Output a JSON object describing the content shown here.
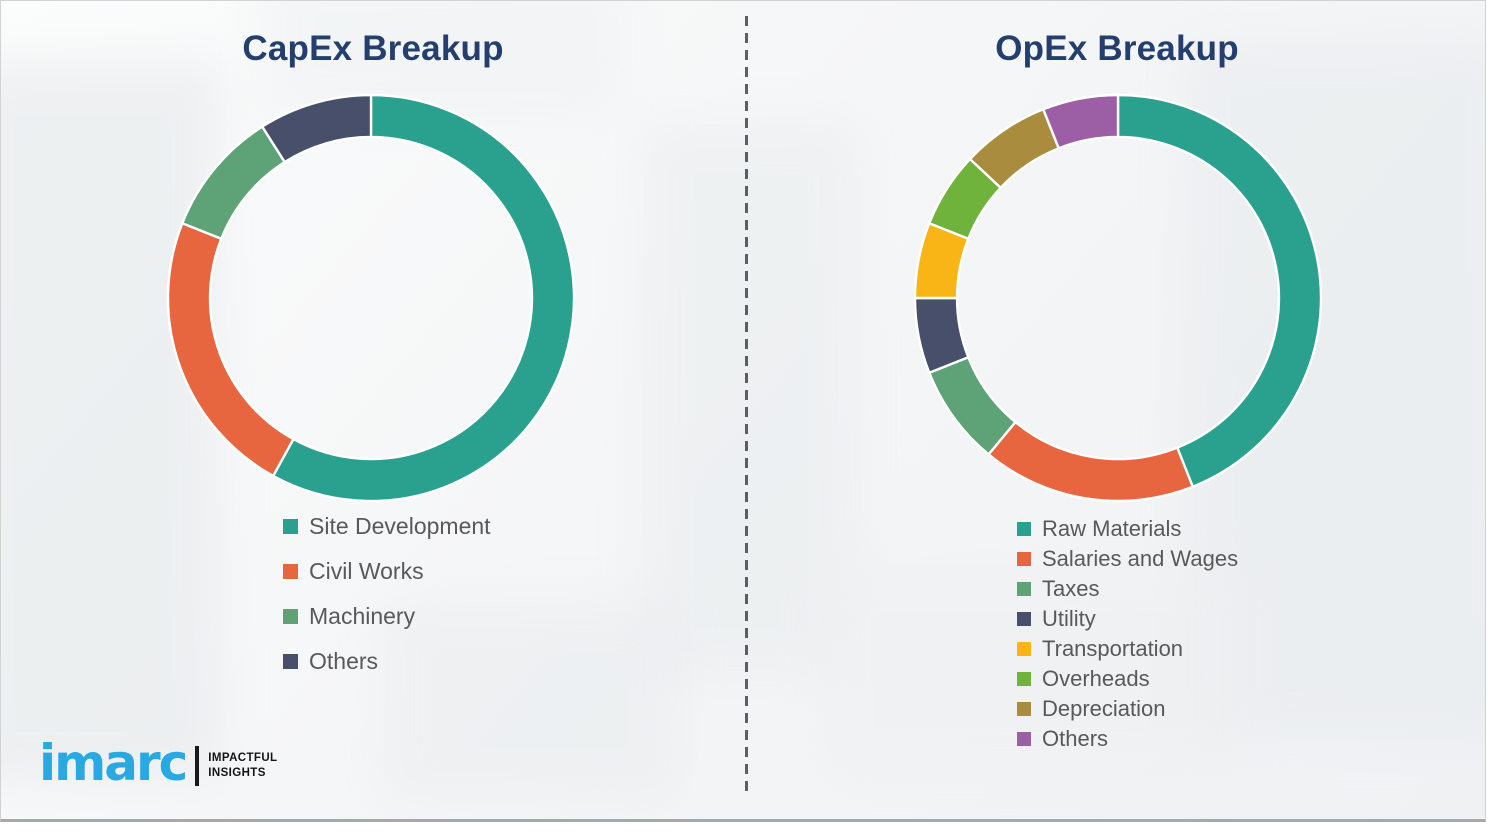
{
  "page": {
    "background_color": "#f5f6f7",
    "border_color": "#d2d2d2",
    "bottom_rule_color": "#a8a8a8",
    "divider_color": "#5a5f66",
    "title_color": "#243f6d",
    "legend_text_color": "#595959"
  },
  "chart_data": [
    {
      "type": "pie",
      "subtype": "donut",
      "title": "CapEx Breakup",
      "labels": [
        "Site Development",
        "Civil Works",
        "Machinery",
        "Others"
      ],
      "values": [
        58,
        23,
        10,
        9
      ],
      "colors": [
        "#2aa08e",
        "#e7663f",
        "#5ea377",
        "#474f6b"
      ],
      "start_angle_deg": 0,
      "direction": "clockwise",
      "legend_position": "below-left",
      "segment_separator_color": "#ffffff"
    },
    {
      "type": "pie",
      "subtype": "donut",
      "title": "OpEx Breakup",
      "labels": [
        "Raw Materials",
        "Salaries and Wages",
        "Taxes",
        "Utility",
        "Transportation",
        "Overheads",
        "Depreciation",
        "Others"
      ],
      "values": [
        44,
        17,
        8,
        6,
        6,
        6,
        7,
        6
      ],
      "colors": [
        "#2aa08e",
        "#e7663f",
        "#5ea377",
        "#474f6b",
        "#f9b415",
        "#6fb33c",
        "#a98c3d",
        "#9c5fa5"
      ],
      "start_angle_deg": 0,
      "direction": "clockwise",
      "legend_position": "below-left",
      "segment_separator_color": "#ffffff"
    }
  ],
  "logo": {
    "brand": "imarc",
    "brand_color": "#29a9e1",
    "tagline_line1": "IMPACTFUL",
    "tagline_line2": "INSIGHTS",
    "tagline_color": "#141414"
  }
}
